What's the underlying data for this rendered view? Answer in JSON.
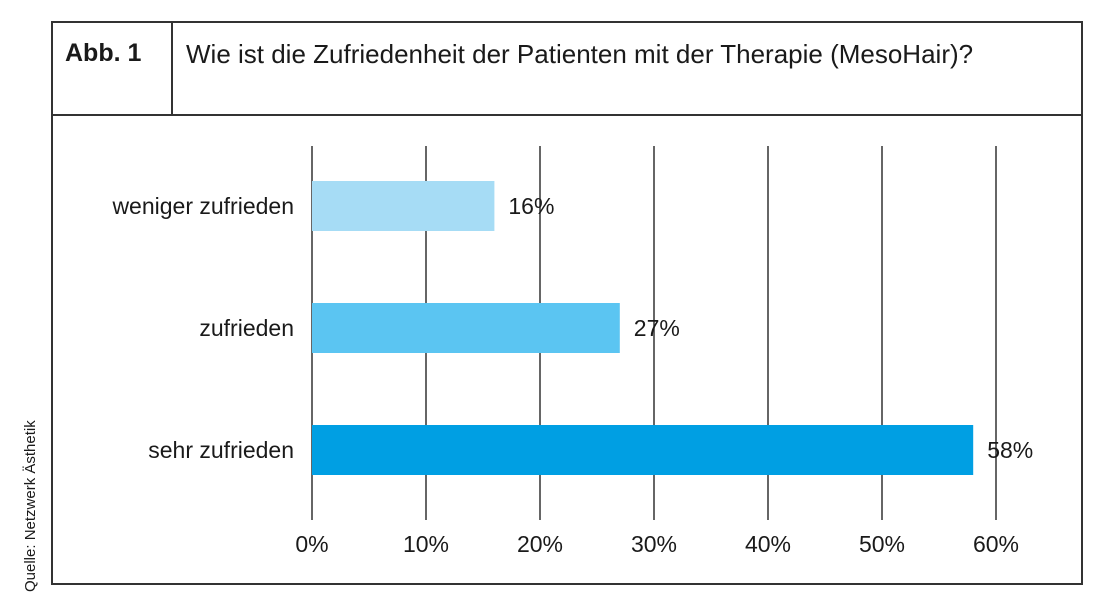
{
  "figure": {
    "label": "Abb. 1",
    "title": "Wie ist die Zufriedenheit der Patienten mit der Therapie (MesoHair)?",
    "source": "Quelle: Netzwerk Ästhetik"
  },
  "chart_data": {
    "type": "bar",
    "orientation": "horizontal",
    "title": "Wie ist die Zufriedenheit der Patienten mit der Therapie (MesoHair)?",
    "categories": [
      "weniger zufrieden",
      "zufrieden",
      "sehr zufrieden"
    ],
    "values": [
      16,
      27,
      58
    ],
    "value_labels": [
      "16%",
      "27%",
      "58%"
    ],
    "colors": [
      "#a6dcf5",
      "#5bc5f2",
      "#009fe3"
    ],
    "xlim": [
      0,
      60
    ],
    "xticks": [
      0,
      10,
      20,
      30,
      40,
      50,
      60
    ],
    "xtick_labels": [
      "0%",
      "10%",
      "20%",
      "30%",
      "40%",
      "50%",
      "60%"
    ],
    "grid": "vertical",
    "gridline_color": "#333333",
    "xlabel": "",
    "ylabel": ""
  }
}
